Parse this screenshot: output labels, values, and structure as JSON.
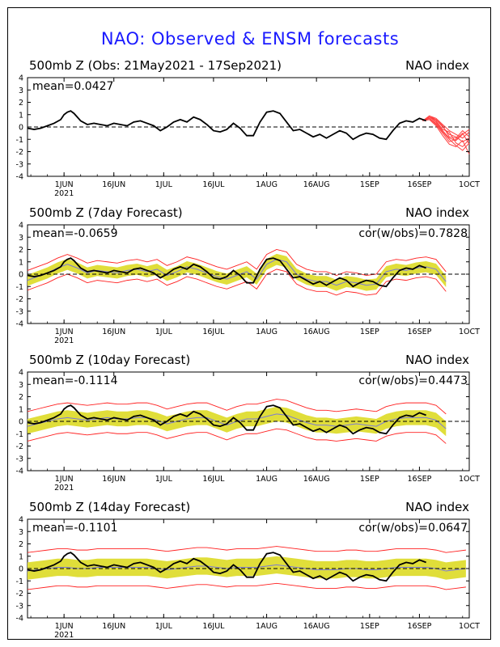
{
  "main_title": "NAO: Observed & ENSM forecasts",
  "chart_data": [
    {
      "type": "line",
      "title": "500mb  Z (Obs: 21May2021 - 17Sep2021)",
      "index_label": "NAO index",
      "mean_label": "mean=0.0427",
      "cor_label": "",
      "ylim": [
        -4,
        4
      ],
      "yticks": [
        "4",
        "3",
        "2",
        "1",
        "0",
        "-1",
        "-2",
        "-3",
        "-4"
      ],
      "xlim_days": [
        0,
        133
      ],
      "xticks": [
        {
          "day": 11,
          "label": "1JUN",
          "sub": "2021"
        },
        {
          "day": 26,
          "label": "16JUN",
          "sub": ""
        },
        {
          "day": 41,
          "label": "1JUL",
          "sub": ""
        },
        {
          "day": 56,
          "label": "16JUL",
          "sub": ""
        },
        {
          "day": 72,
          "label": "1AUG",
          "sub": ""
        },
        {
          "day": 87,
          "label": "16AUG",
          "sub": ""
        },
        {
          "day": 103,
          "label": "1SEP",
          "sub": ""
        },
        {
          "day": 118,
          "label": "16SEP",
          "sub": ""
        },
        {
          "day": 133,
          "label": "1OCT",
          "sub": ""
        }
      ],
      "observed": {
        "color": "#000000",
        "days": [
          0,
          2,
          4,
          6,
          8,
          10,
          11,
          12,
          13,
          14,
          16,
          18,
          20,
          22,
          24,
          26,
          28,
          30,
          32,
          34,
          36,
          38,
          40,
          42,
          44,
          46,
          48,
          50,
          52,
          54,
          56,
          58,
          60,
          62,
          64,
          66,
          68,
          70,
          72,
          74,
          76,
          78,
          80,
          82,
          84,
          86,
          88,
          90,
          92,
          94,
          96,
          98,
          100,
          102,
          104,
          106,
          108,
          110,
          112,
          114,
          116,
          118,
          120
        ],
        "values": [
          -0.1,
          -0.2,
          -0.1,
          0.1,
          0.3,
          0.6,
          1.0,
          1.2,
          1.3,
          1.1,
          0.5,
          0.2,
          0.3,
          0.2,
          0.1,
          0.3,
          0.2,
          0.1,
          0.4,
          0.5,
          0.3,
          0.1,
          -0.3,
          0.0,
          0.4,
          0.6,
          0.4,
          0.8,
          0.6,
          0.2,
          -0.3,
          -0.4,
          -0.2,
          0.3,
          -0.1,
          -0.7,
          -0.7,
          0.4,
          1.2,
          1.3,
          1.1,
          0.4,
          -0.3,
          -0.2,
          -0.5,
          -0.8,
          -0.6,
          -0.9,
          -0.6,
          -0.3,
          -0.5,
          -1.0,
          -0.7,
          -0.5,
          -0.6,
          -0.9,
          -1.0,
          -0.3,
          0.3,
          0.5,
          0.4,
          0.7,
          0.5
        ]
      },
      "forecast_members": {
        "color": "#ff4040",
        "start_day": 119,
        "days": [
          119,
          121,
          123,
          125,
          127,
          129,
          131,
          133
        ],
        "members": [
          [
            0.5,
            0.8,
            0.4,
            -0.3,
            -0.9,
            -1.1,
            -0.6,
            -0.2
          ],
          [
            0.5,
            0.9,
            0.6,
            0.0,
            -0.6,
            -0.8,
            -1.2,
            -0.9
          ],
          [
            0.5,
            0.7,
            0.2,
            -0.5,
            -1.2,
            -1.0,
            -0.5,
            -1.4
          ],
          [
            0.5,
            0.8,
            0.5,
            -0.2,
            -0.4,
            -1.3,
            -1.6,
            -1.0
          ],
          [
            0.5,
            0.6,
            0.1,
            -0.7,
            -1.4,
            -1.6,
            -1.1,
            -2.2
          ],
          [
            0.5,
            0.9,
            0.7,
            0.2,
            -0.3,
            -0.6,
            -0.9,
            -0.4
          ],
          [
            0.5,
            0.7,
            0.3,
            -0.4,
            -1.0,
            -1.5,
            -1.9,
            -1.3
          ],
          [
            0.5,
            0.8,
            0.6,
            0.1,
            -0.8,
            -0.9,
            -0.3,
            -0.8
          ]
        ]
      }
    },
    {
      "type": "line",
      "title": "500mb  Z (7day Forecast)",
      "index_label": "NAO index",
      "mean_label": "mean=-0.0659",
      "cor_label": "cor(w/obs)=0.7828",
      "ylim": [
        -4,
        4
      ],
      "yticks": [
        "4",
        "3",
        "2",
        "1",
        "0",
        "-1",
        "-2",
        "-3",
        "-4"
      ],
      "xlim_days": [
        0,
        133
      ],
      "xticks": [
        {
          "day": 11,
          "label": "1JUN",
          "sub": "2021"
        },
        {
          "day": 26,
          "label": "16JUN",
          "sub": ""
        },
        {
          "day": 41,
          "label": "1JUL",
          "sub": ""
        },
        {
          "day": 56,
          "label": "16JUL",
          "sub": ""
        },
        {
          "day": 72,
          "label": "1AUG",
          "sub": ""
        },
        {
          "day": 87,
          "label": "16AUG",
          "sub": ""
        },
        {
          "day": 103,
          "label": "1SEP",
          "sub": ""
        },
        {
          "day": 118,
          "label": "16SEP",
          "sub": ""
        },
        {
          "day": 133,
          "label": "1OCT",
          "sub": ""
        }
      ],
      "spread_days": [
        0,
        3,
        6,
        9,
        12,
        15,
        18,
        21,
        24,
        27,
        30,
        33,
        36,
        39,
        42,
        45,
        48,
        51,
        54,
        57,
        60,
        63,
        66,
        69,
        72,
        75,
        78,
        81,
        84,
        87,
        90,
        93,
        96,
        99,
        102,
        105,
        108,
        111,
        114,
        117,
        120,
        123,
        126
      ],
      "mean_values": [
        -0.5,
        -0.2,
        0.1,
        0.5,
        0.8,
        0.5,
        0.1,
        0.3,
        0.2,
        0.1,
        0.3,
        0.4,
        0.2,
        0.4,
        -0.1,
        0.2,
        0.6,
        0.4,
        0.1,
        -0.2,
        -0.4,
        -0.1,
        0.2,
        -0.4,
        0.8,
        1.2,
        1.0,
        0.0,
        -0.4,
        -0.6,
        -0.6,
        -0.9,
        -0.6,
        -0.7,
        -0.9,
        -0.8,
        0.2,
        0.4,
        0.3,
        0.5,
        0.6,
        0.4,
        -0.6
      ],
      "band_half_width": [
        0.45,
        0.45,
        0.45,
        0.45,
        0.45,
        0.45,
        0.45,
        0.45,
        0.45,
        0.45,
        0.45,
        0.45,
        0.45,
        0.45,
        0.45,
        0.45,
        0.45,
        0.45,
        0.45,
        0.45,
        0.45,
        0.45,
        0.45,
        0.45,
        0.45,
        0.45,
        0.45,
        0.45,
        0.45,
        0.45,
        0.45,
        0.45,
        0.45,
        0.45,
        0.45,
        0.45,
        0.45,
        0.45,
        0.45,
        0.45,
        0.45,
        0.45,
        0.45
      ],
      "envelope_half_width": [
        0.8,
        0.8,
        0.8,
        0.8,
        0.8,
        0.8,
        0.8,
        0.8,
        0.8,
        0.8,
        0.8,
        0.8,
        0.8,
        0.8,
        0.8,
        0.8,
        0.8,
        0.8,
        0.8,
        0.8,
        0.8,
        0.8,
        0.8,
        0.8,
        0.8,
        0.8,
        0.8,
        0.8,
        0.8,
        0.8,
        0.8,
        0.8,
        0.8,
        0.8,
        0.8,
        0.8,
        0.8,
        0.8,
        0.8,
        0.8,
        0.8,
        0.8,
        0.8
      ],
      "observed_end_day": 120
    },
    {
      "type": "line",
      "title": "500mb  Z (10day Forecast)",
      "index_label": "NAO index",
      "mean_label": "mean=-0.1114",
      "cor_label": "cor(w/obs)=0.4473",
      "ylim": [
        -4,
        4
      ],
      "yticks": [
        "4",
        "3",
        "2",
        "1",
        "0",
        "-1",
        "-2",
        "-3",
        "-4"
      ],
      "xlim_days": [
        0,
        133
      ],
      "xticks": [
        {
          "day": 11,
          "label": "1JUN",
          "sub": "2021"
        },
        {
          "day": 26,
          "label": "16JUN",
          "sub": ""
        },
        {
          "day": 41,
          "label": "1JUL",
          "sub": ""
        },
        {
          "day": 56,
          "label": "16JUL",
          "sub": ""
        },
        {
          "day": 72,
          "label": "1AUG",
          "sub": ""
        },
        {
          "day": 87,
          "label": "16AUG",
          "sub": ""
        },
        {
          "day": 103,
          "label": "1SEP",
          "sub": ""
        },
        {
          "day": 118,
          "label": "16SEP",
          "sub": ""
        },
        {
          "day": 133,
          "label": "1OCT",
          "sub": ""
        }
      ],
      "spread_days": [
        0,
        3,
        6,
        9,
        12,
        15,
        18,
        21,
        24,
        27,
        30,
        33,
        36,
        39,
        42,
        45,
        48,
        51,
        54,
        57,
        60,
        63,
        66,
        69,
        72,
        75,
        78,
        81,
        84,
        87,
        90,
        93,
        96,
        99,
        102,
        105,
        108,
        111,
        114,
        117,
        120,
        123,
        126
      ],
      "mean_values": [
        -0.4,
        -0.2,
        0.0,
        0.2,
        0.3,
        0.2,
        0.1,
        0.2,
        0.3,
        0.2,
        0.2,
        0.3,
        0.3,
        0.1,
        -0.2,
        0.0,
        0.2,
        0.3,
        0.3,
        0.0,
        -0.3,
        0.0,
        0.2,
        0.2,
        0.4,
        0.6,
        0.5,
        0.2,
        -0.1,
        -0.3,
        -0.3,
        -0.4,
        -0.3,
        -0.2,
        -0.3,
        -0.4,
        0.0,
        0.2,
        0.3,
        0.3,
        0.3,
        0.1,
        -0.6
      ],
      "band_half_width": [
        0.6,
        0.6,
        0.6,
        0.6,
        0.6,
        0.6,
        0.6,
        0.6,
        0.6,
        0.6,
        0.6,
        0.6,
        0.6,
        0.6,
        0.6,
        0.6,
        0.6,
        0.6,
        0.6,
        0.6,
        0.6,
        0.6,
        0.6,
        0.6,
        0.6,
        0.6,
        0.6,
        0.6,
        0.6,
        0.6,
        0.6,
        0.6,
        0.6,
        0.6,
        0.6,
        0.6,
        0.6,
        0.6,
        0.6,
        0.6,
        0.6,
        0.6,
        0.6
      ],
      "envelope_half_width": [
        1.2,
        1.2,
        1.2,
        1.2,
        1.2,
        1.2,
        1.2,
        1.2,
        1.2,
        1.2,
        1.2,
        1.2,
        1.2,
        1.2,
        1.2,
        1.2,
        1.2,
        1.2,
        1.2,
        1.2,
        1.2,
        1.2,
        1.2,
        1.2,
        1.2,
        1.2,
        1.2,
        1.2,
        1.2,
        1.2,
        1.2,
        1.2,
        1.2,
        1.2,
        1.2,
        1.2,
        1.2,
        1.2,
        1.2,
        1.2,
        1.2,
        1.2,
        1.2
      ],
      "observed_end_day": 120
    },
    {
      "type": "line",
      "title": "500mb  Z (14day Forecast)",
      "index_label": "NAO index",
      "mean_label": "mean=-0.1101",
      "cor_label": "cor(w/obs)=0.0647",
      "ylim": [
        -4,
        4
      ],
      "yticks": [
        "4",
        "3",
        "2",
        "1",
        "0",
        "-1",
        "-2",
        "-3",
        "-4"
      ],
      "xlim_days": [
        0,
        133
      ],
      "xticks": [
        {
          "day": 11,
          "label": "1JUN",
          "sub": "2021"
        },
        {
          "day": 26,
          "label": "16JUN",
          "sub": ""
        },
        {
          "day": 41,
          "label": "1JUL",
          "sub": ""
        },
        {
          "day": 56,
          "label": "16JUL",
          "sub": ""
        },
        {
          "day": 72,
          "label": "1AUG",
          "sub": ""
        },
        {
          "day": 87,
          "label": "16AUG",
          "sub": ""
        },
        {
          "day": 103,
          "label": "1SEP",
          "sub": ""
        },
        {
          "day": 118,
          "label": "16SEP",
          "sub": ""
        },
        {
          "day": 133,
          "label": "1OCT",
          "sub": ""
        }
      ],
      "spread_days": [
        0,
        3,
        6,
        9,
        12,
        15,
        18,
        21,
        24,
        27,
        30,
        33,
        36,
        39,
        42,
        45,
        48,
        51,
        54,
        57,
        60,
        63,
        66,
        69,
        72,
        75,
        78,
        81,
        84,
        87,
        90,
        93,
        96,
        99,
        102,
        105,
        108,
        111,
        114,
        117,
        120,
        123,
        126,
        129,
        132
      ],
      "mean_values": [
        -0.2,
        -0.1,
        0.0,
        0.1,
        0.1,
        0.0,
        0.0,
        0.1,
        0.1,
        0.1,
        0.1,
        0.1,
        0.1,
        0.0,
        -0.1,
        0.0,
        0.1,
        0.2,
        0.2,
        0.1,
        0.0,
        0.1,
        0.1,
        0.1,
        0.2,
        0.3,
        0.2,
        0.1,
        0.0,
        -0.1,
        -0.1,
        -0.1,
        0.0,
        0.0,
        -0.1,
        -0.1,
        0.0,
        0.1,
        0.1,
        0.1,
        0.1,
        0.0,
        -0.2,
        -0.1,
        0.0
      ],
      "band_half_width": [
        0.7,
        0.7,
        0.7,
        0.7,
        0.7,
        0.7,
        0.7,
        0.7,
        0.7,
        0.7,
        0.7,
        0.7,
        0.7,
        0.7,
        0.7,
        0.7,
        0.7,
        0.7,
        0.7,
        0.7,
        0.7,
        0.7,
        0.7,
        0.7,
        0.7,
        0.7,
        0.7,
        0.7,
        0.7,
        0.7,
        0.7,
        0.7,
        0.7,
        0.7,
        0.7,
        0.7,
        0.7,
        0.7,
        0.7,
        0.7,
        0.7,
        0.7,
        0.7,
        0.7,
        0.7
      ],
      "envelope_half_width": [
        1.5,
        1.5,
        1.5,
        1.5,
        1.5,
        1.5,
        1.5,
        1.5,
        1.5,
        1.5,
        1.5,
        1.5,
        1.5,
        1.5,
        1.5,
        1.5,
        1.5,
        1.5,
        1.5,
        1.5,
        1.5,
        1.5,
        1.5,
        1.5,
        1.5,
        1.5,
        1.5,
        1.5,
        1.5,
        1.5,
        1.5,
        1.5,
        1.5,
        1.5,
        1.5,
        1.5,
        1.5,
        1.5,
        1.5,
        1.5,
        1.5,
        1.5,
        1.5,
        1.5,
        1.5
      ],
      "observed_end_day": 120
    }
  ],
  "colors": {
    "title_blue": "#1a1aff",
    "spread_fill": "#e0de3a",
    "ensemble_mean": "#7b7bd6",
    "envelope": "#ff2020",
    "observed": "#000000"
  }
}
